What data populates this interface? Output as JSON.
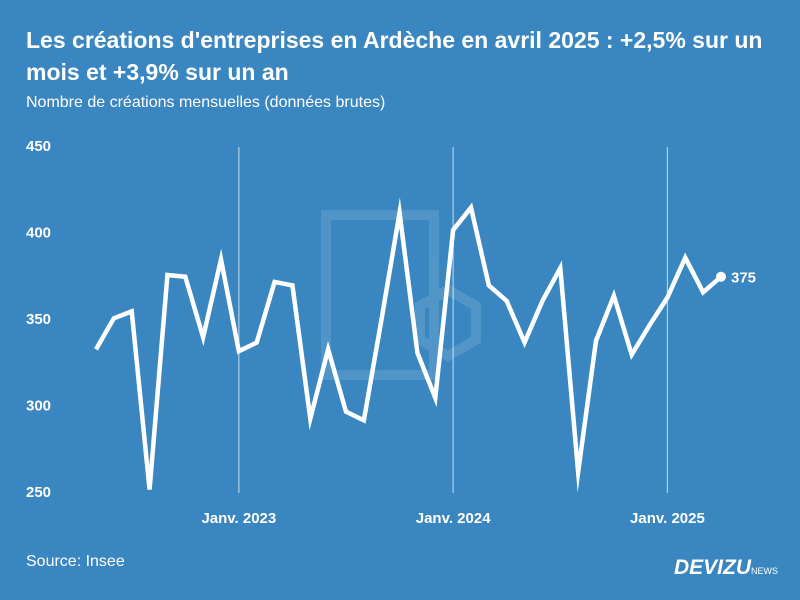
{
  "chart_data": {
    "type": "line",
    "title": "Les créations d'entreprises en Ardèche en avril 2025 : +2,5% sur un mois et +3,9% sur un an",
    "subtitle": "Nombre de créations mensuelles (données brutes)",
    "source": "Source: Insee",
    "categories": [
      null,
      null,
      null,
      null,
      null,
      null,
      null,
      null,
      "Janv. 2023",
      null,
      null,
      null,
      null,
      null,
      null,
      null,
      null,
      null,
      null,
      null,
      "Janv. 2024",
      null,
      null,
      null,
      null,
      null,
      null,
      null,
      null,
      null,
      null,
      null,
      "Janv. 2025",
      null,
      null,
      null
    ],
    "series": [
      {
        "color": "#ffffff",
        "values": [
          333,
          351,
          355,
          252,
          376,
          375,
          340,
          385,
          332,
          337,
          372,
          370,
          293,
          333,
          297,
          292,
          351,
          412,
          331,
          305,
          402,
          415,
          370,
          361,
          337,
          361,
          380,
          262,
          338,
          364,
          330,
          347,
          363,
          386,
          366,
          375
        ]
      }
    ],
    "ylim": [
      250,
      450
    ],
    "yticks": [
      250,
      300,
      350,
      400,
      450
    ],
    "grid": true
  },
  "brand": {
    "name": "DEVIZU",
    "suffix": "NEWS"
  }
}
